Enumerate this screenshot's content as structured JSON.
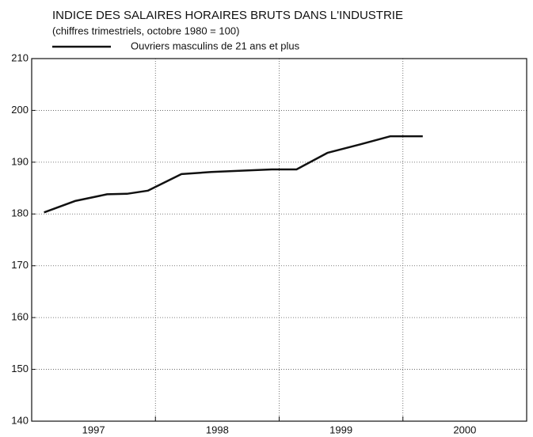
{
  "chart_data": {
    "type": "line",
    "title": "INDICE DES SALAIRES HORAIRES BRUTS DANS L'INDUSTRIE",
    "subtitle": "(chiffres trimestriels, octobre 1980 = 100)",
    "x": [
      1997.1,
      1997.35,
      1997.61,
      1997.77,
      1997.94,
      1998.21,
      1998.45,
      1998.94,
      1999.14,
      1999.39,
      1999.65,
      1999.9,
      2000.16
    ],
    "series": [
      {
        "name": "Ouvriers masculins de 21 ans et plus",
        "color": "#111111",
        "values": [
          180.3,
          182.5,
          183.8,
          183.9,
          184.5,
          187.7,
          188.1,
          188.6,
          188.6,
          191.8,
          193.4,
          195.0,
          195.0
        ]
      }
    ],
    "xlim": [
      1997,
      2001
    ],
    "xticks": [
      {
        "value": 1997.5,
        "label": "1997"
      },
      {
        "value": 1998.5,
        "label": "1998"
      },
      {
        "value": 1999.5,
        "label": "1999"
      },
      {
        "value": 2000.5,
        "label": "2000"
      }
    ],
    "xgrid": [
      1998,
      1999,
      2000
    ],
    "ylim": [
      140,
      210
    ],
    "yticks": [
      140,
      150,
      160,
      170,
      180,
      190,
      200,
      210
    ],
    "grid": true
  }
}
